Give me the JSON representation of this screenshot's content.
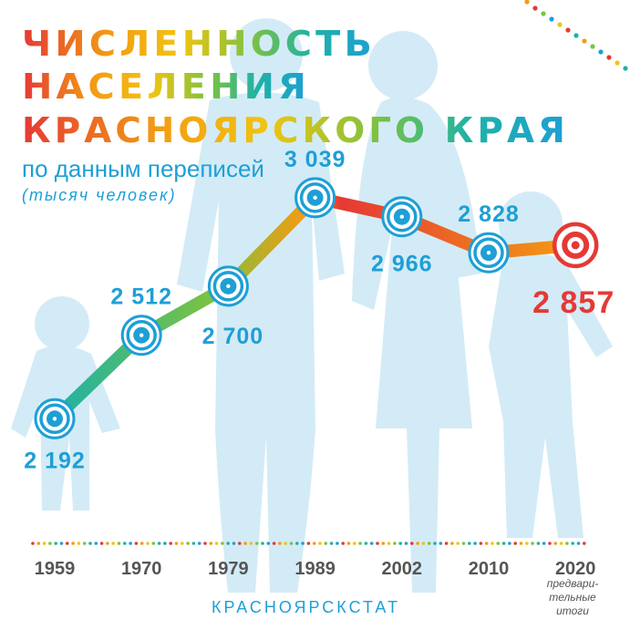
{
  "header": {
    "title_lines": [
      "ЧИСЛЕННОСТЬ",
      "НАСЕЛЕНИЯ",
      "КРАСНОЯРСКОГО КРАЯ"
    ],
    "subtitle": "по данным переписей",
    "units": "(тысяч человек)"
  },
  "footer": {
    "source": "КРАСНОЯРСКСТАТ",
    "footnote_lines": [
      "предвари-",
      "тельные",
      "итоги"
    ]
  },
  "colors": {
    "accent_blue": "#1e9fd6",
    "highlight_red": "#e53935",
    "silhouette": "#d3ebf6",
    "title_gradient": [
      "#e53935",
      "#f39c12",
      "#f1c40f",
      "#7cc242",
      "#1eb2a6",
      "#1e9fd6"
    ],
    "line_gradient": [
      "#1eb2a6",
      "#7cc242",
      "#f39c12",
      "#e53935",
      "#f39c12"
    ]
  },
  "icons": {
    "data_point": "target-circle-icon",
    "highlight_point": "red-target-icon",
    "background": "family-silhouette"
  },
  "chart_data": {
    "type": "line",
    "title": "",
    "xlabel": "",
    "ylabel": "",
    "categories": [
      "1959",
      "1970",
      "1979",
      "1989",
      "2002",
      "2010",
      "2020"
    ],
    "series": [
      {
        "values": [
          2192,
          2512,
          2700,
          3039,
          2966,
          2828,
          2857
        ]
      }
    ],
    "value_labels": [
      "2 192",
      "2 512",
      "2 700",
      "3 039",
      "2 966",
      "2 828",
      "2 857"
    ],
    "highlight_index": 6,
    "ylim": [
      1980,
      3220
    ],
    "grid": false,
    "legend": "none"
  }
}
